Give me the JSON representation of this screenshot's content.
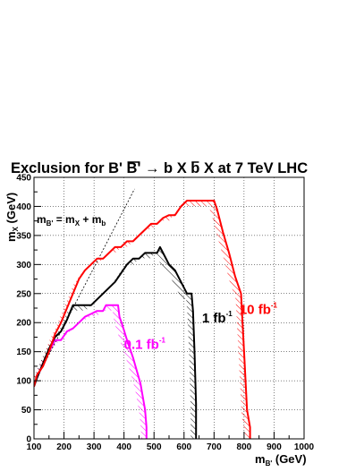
{
  "chart_data": {
    "type": "line",
    "title": "Exclusion for B' B' → b X b X at 7 TeV LHC",
    "title_parts": {
      "pre": "Exclusion for B' ",
      "bar": "B'",
      "mid": " → b X ",
      "bbar": "b",
      "post": " X at 7 TeV LHC"
    },
    "xlabel": {
      "main": "m",
      "sub": "B'",
      "unit": " (GeV)"
    },
    "ylabel": {
      "main": "m",
      "sub": "X",
      "unit": " (GeV)"
    },
    "xlim": [
      100,
      1000
    ],
    "ylim": [
      0,
      450
    ],
    "xticks": [
      100,
      200,
      300,
      400,
      500,
      600,
      700,
      800,
      900,
      1000
    ],
    "yticks": [
      0,
      50,
      100,
      150,
      200,
      250,
      300,
      350,
      400,
      450
    ],
    "grid": true,
    "relation_label": {
      "lhs_main": "m",
      "lhs_sub": "B'",
      "eq": " = m",
      "sub1": "X",
      "plus": " + m",
      "sub2": "b"
    },
    "kinematic_line": {
      "x": [
        95,
        435
      ],
      "y": [
        90,
        430
      ]
    },
    "series": [
      {
        "name": "0.1 fb-1",
        "label_main": "0.1 fb",
        "label_sup": "-1",
        "label_pos": {
          "x": 400,
          "y": 155
        },
        "color": "#ff00ff",
        "x": [
          100,
          110,
          130,
          150,
          170,
          190,
          210,
          230,
          250,
          270,
          290,
          310,
          330,
          340,
          350,
          360,
          370,
          380,
          385,
          395,
          410,
          430,
          455,
          470,
          475,
          475
        ],
        "y": [
          95,
          105,
          130,
          150,
          170,
          170,
          185,
          190,
          200,
          210,
          215,
          220,
          220,
          230,
          230,
          230,
          230,
          230,
          210,
          195,
          170,
          140,
          95,
          50,
          20,
          0
        ]
      },
      {
        "name": "1 fb-1",
        "label_main": "1 fb",
        "label_sup": "-1",
        "label_pos": {
          "x": 660,
          "y": 200
        },
        "color": "#000000",
        "x": [
          100,
          110,
          130,
          150,
          170,
          190,
          210,
          230,
          250,
          270,
          290,
          310,
          330,
          350,
          370,
          390,
          410,
          430,
          450,
          470,
          490,
          510,
          520,
          530,
          550,
          570,
          590,
          610,
          625,
          630,
          635,
          640,
          640
        ],
        "y": [
          90,
          105,
          130,
          155,
          175,
          185,
          205,
          230,
          230,
          230,
          230,
          240,
          250,
          260,
          270,
          285,
          300,
          310,
          310,
          320,
          320,
          320,
          330,
          320,
          300,
          290,
          270,
          250,
          250,
          220,
          150,
          60,
          0
        ]
      },
      {
        "name": "10 fb-1",
        "label_main": "10 fb",
        "label_sup": "-1",
        "label_pos": {
          "x": 785,
          "y": 215
        },
        "color": "#ff0000",
        "x": [
          100,
          110,
          130,
          150,
          170,
          190,
          210,
          230,
          250,
          270,
          290,
          310,
          330,
          350,
          370,
          390,
          410,
          430,
          450,
          470,
          490,
          510,
          530,
          550,
          570,
          590,
          610,
          630,
          650,
          670,
          690,
          700,
          710,
          730,
          750,
          770,
          790,
          800,
          810,
          820,
          820
        ],
        "y": [
          90,
          110,
          125,
          150,
          180,
          200,
          225,
          250,
          275,
          290,
          300,
          310,
          310,
          320,
          330,
          330,
          340,
          340,
          350,
          360,
          370,
          370,
          380,
          385,
          385,
          400,
          410,
          410,
          410,
          410,
          410,
          410,
          395,
          355,
          320,
          280,
          250,
          150,
          50,
          20,
          0
        ]
      }
    ]
  }
}
